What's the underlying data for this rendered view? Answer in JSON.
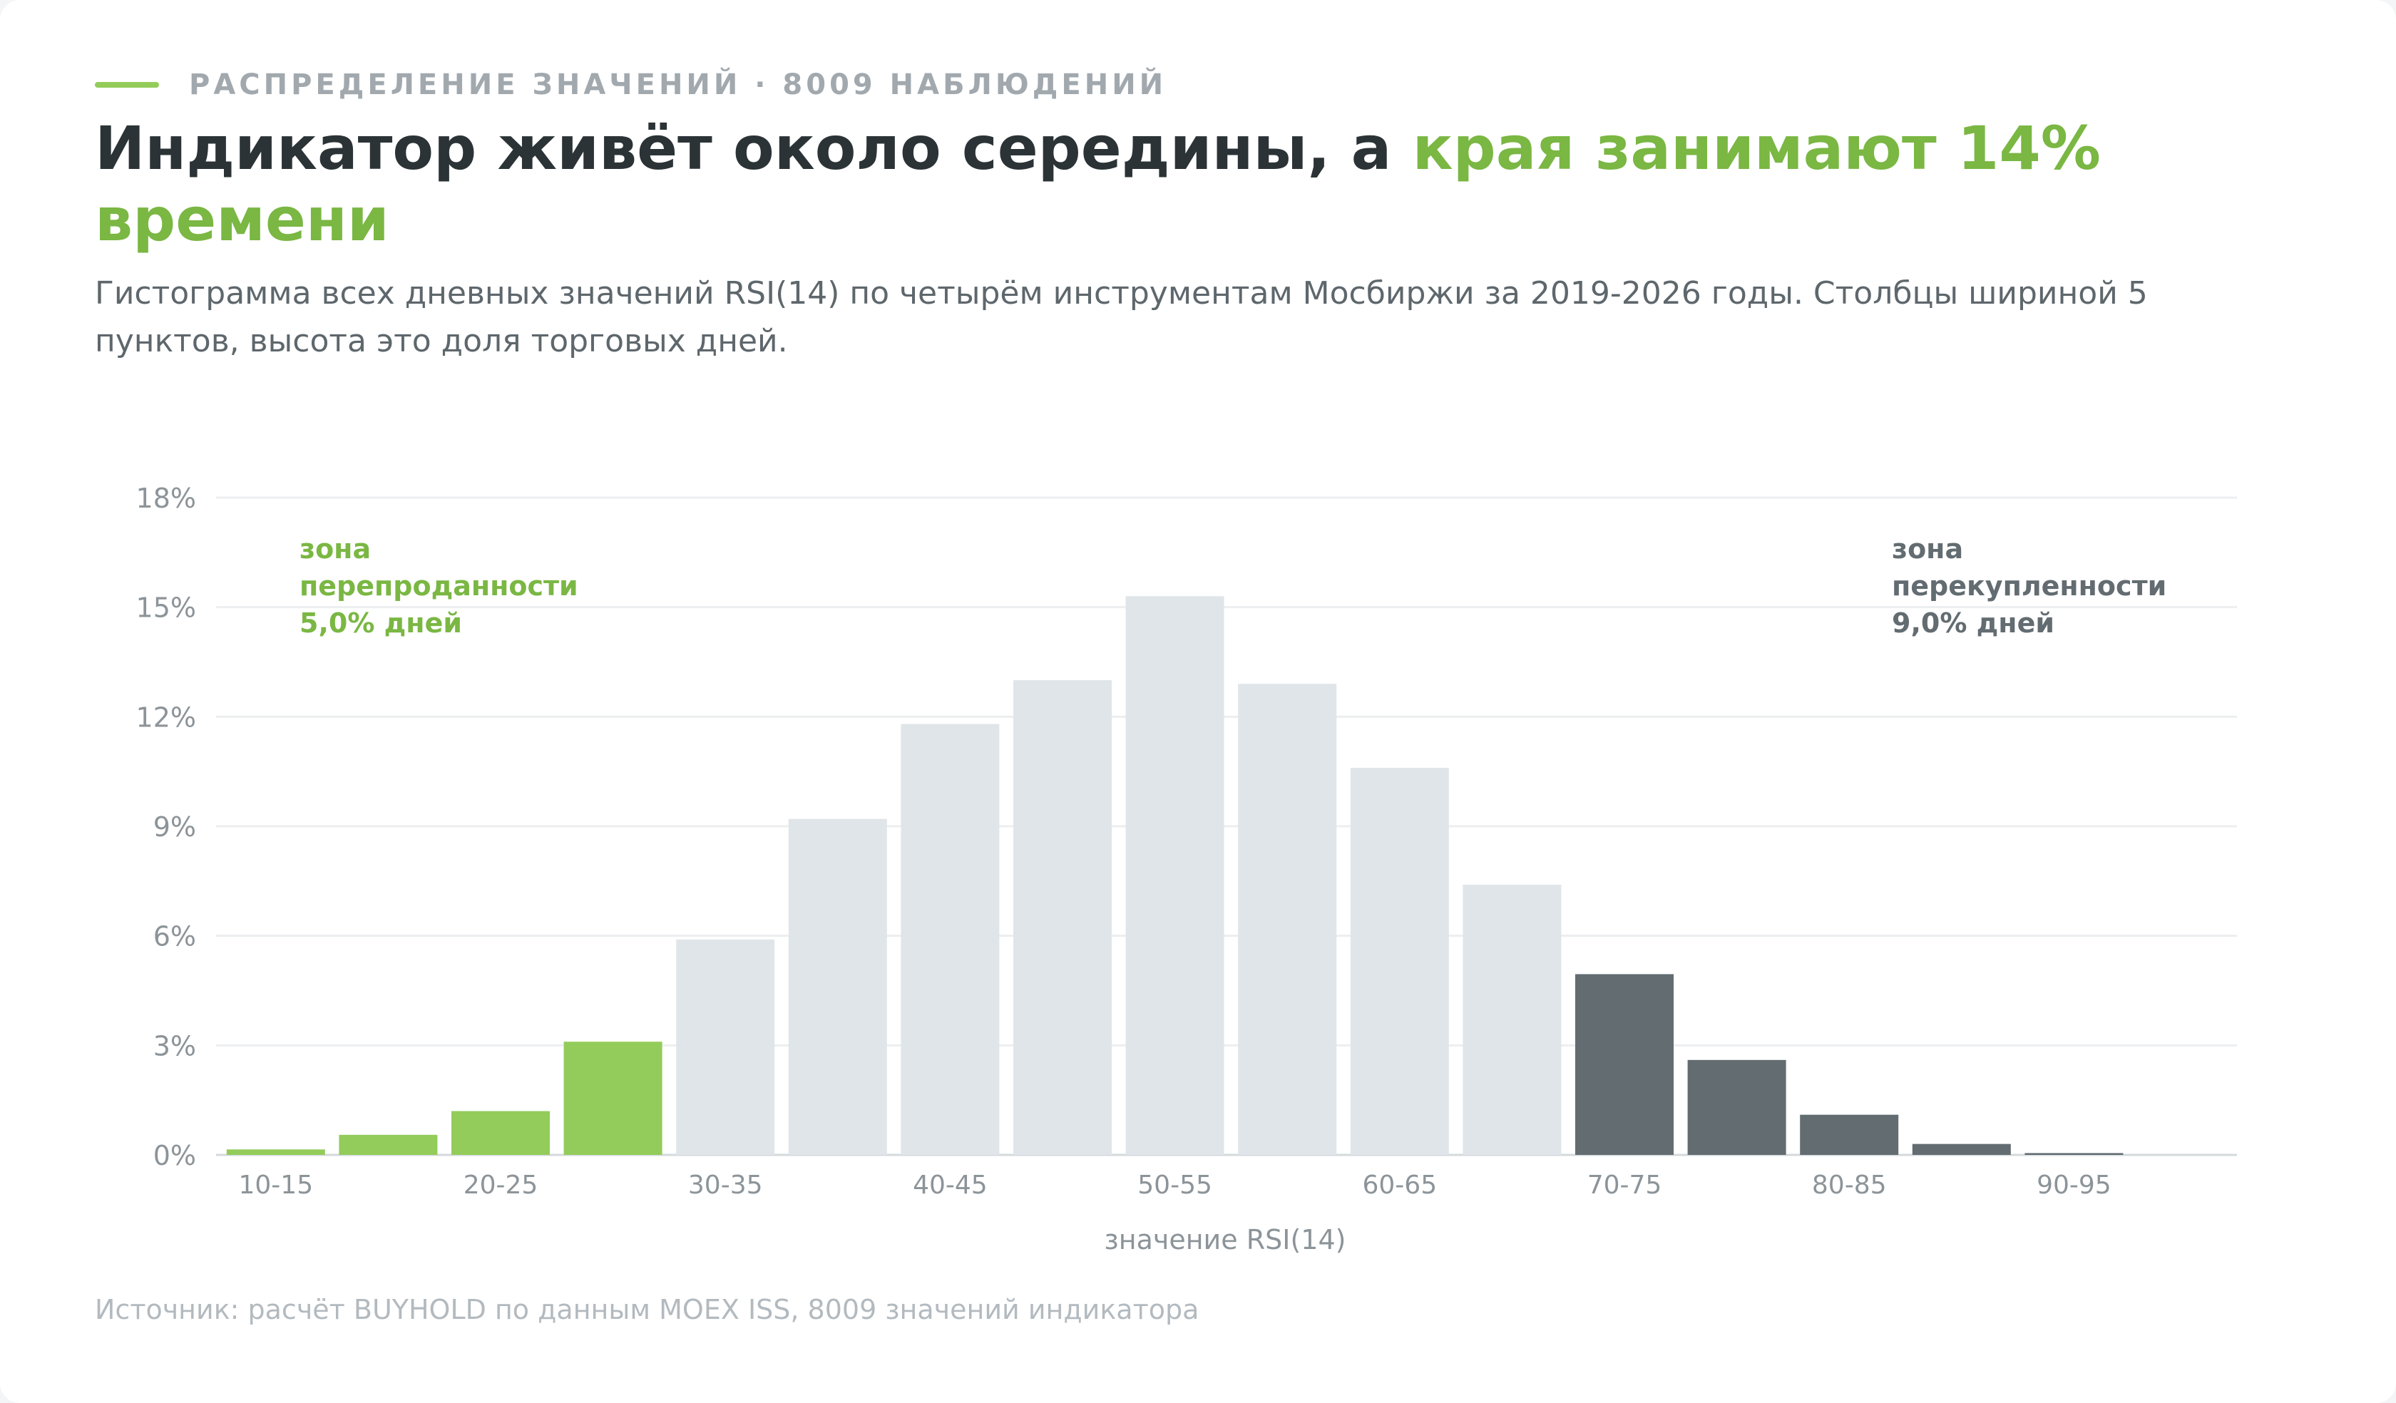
{
  "header": {
    "eyebrow": "Распределение значений · 8009 наблюдений",
    "title_main": "Индикатор живёт около середины, а ",
    "title_accent": "края занимают 14% времени",
    "subtitle": "Гистограмма всех дневных значений RSI(14) по четырём инструментам Мосбиржи за 2019-2026 годы. Столбцы шириной 5 пунктов, высота это доля торговых дней."
  },
  "footer": {
    "source": "Источник: расчёт BUYHOLD по данным MOEX ISS, 8009 значений индикатора"
  },
  "colors": {
    "oversold": "#93cc5a",
    "neutral": "#dfe5e8",
    "overbought": "#626c71",
    "oversold_text": "#7ab743",
    "overbought_text": "#626c71",
    "grid": "#eceef0",
    "axis_text": "#8c9499"
  },
  "chart_data": {
    "type": "bar",
    "xlabel": "значение RSI(14)",
    "ylabel": "",
    "ylim": [
      0,
      18
    ],
    "yticks": [
      "0%",
      "3%",
      "6%",
      "9%",
      "12%",
      "15%",
      "18%"
    ],
    "grid": true,
    "categories": [
      "10-15",
      "15-20",
      "20-25",
      "25-30",
      "30-35",
      "35-40",
      "40-45",
      "45-50",
      "50-55",
      "55-60",
      "60-65",
      "65-70",
      "70-75",
      "75-80",
      "80-85",
      "85-90",
      "90-95"
    ],
    "xtick_labels": [
      "10-15",
      "",
      "20-25",
      "",
      "30-35",
      "",
      "40-45",
      "",
      "50-55",
      "",
      "60-65",
      "",
      "70-75",
      "",
      "80-85",
      "",
      "90-95"
    ],
    "values": [
      0.15,
      0.55,
      1.2,
      3.1,
      5.9,
      9.2,
      11.8,
      13.0,
      15.3,
      12.9,
      10.6,
      7.4,
      4.95,
      2.6,
      1.1,
      0.3,
      0.05
    ],
    "zones": [
      "oversold",
      "oversold",
      "oversold",
      "oversold",
      "neutral",
      "neutral",
      "neutral",
      "neutral",
      "neutral",
      "neutral",
      "neutral",
      "neutral",
      "overbought",
      "overbought",
      "overbought",
      "overbought",
      "overbought"
    ],
    "annotations": [
      {
        "zone": "oversold",
        "lines": [
          "зона",
          "перепроданности",
          "5,0% дней"
        ]
      },
      {
        "zone": "overbought",
        "lines": [
          "зона",
          "перекупленности",
          "9,0% дней"
        ]
      }
    ]
  }
}
